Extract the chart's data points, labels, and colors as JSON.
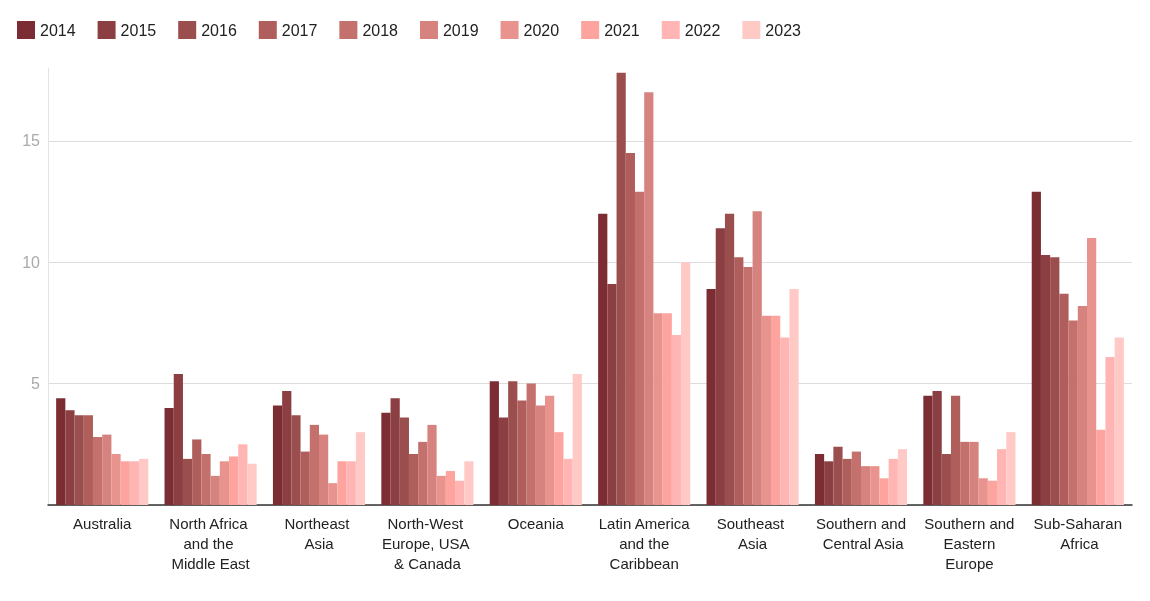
{
  "chart_data": {
    "type": "bar",
    "categories": [
      "Australia",
      "North Africa and the Middle East",
      "Northeast Asia",
      "North-West Europe, USA & Canada",
      "Oceania",
      "Latin America and the Caribbean",
      "Southeast Asia",
      "Southern and Central Asia",
      "Southern and Eastern Europe",
      "Sub-Saharan Africa"
    ],
    "series": [
      {
        "name": "2014",
        "color": "#7b2d33",
        "values": [
          4.4,
          4.0,
          4.1,
          3.8,
          5.1,
          12.0,
          8.9,
          2.1,
          4.5,
          12.9
        ]
      },
      {
        "name": "2015",
        "color": "#8b3f42",
        "values": [
          3.9,
          5.4,
          4.7,
          4.4,
          3.6,
          9.1,
          11.4,
          1.8,
          4.7,
          10.3
        ]
      },
      {
        "name": "2016",
        "color": "#9b4e4e",
        "values": [
          3.7,
          1.9,
          3.7,
          3.6,
          5.1,
          17.8,
          12.0,
          2.4,
          2.1,
          10.2
        ]
      },
      {
        "name": "2017",
        "color": "#b05e5c",
        "values": [
          3.7,
          2.7,
          2.2,
          2.1,
          4.3,
          14.5,
          10.2,
          1.9,
          4.5,
          8.7
        ]
      },
      {
        "name": "2018",
        "color": "#c4706c",
        "values": [
          2.8,
          2.1,
          3.3,
          2.6,
          5.0,
          12.9,
          9.8,
          2.2,
          2.6,
          7.6
        ]
      },
      {
        "name": "2019",
        "color": "#d6827e",
        "values": [
          2.9,
          1.2,
          2.9,
          3.3,
          4.1,
          17.0,
          12.1,
          1.6,
          2.6,
          8.2
        ]
      },
      {
        "name": "2020",
        "color": "#e8938d",
        "values": [
          2.1,
          1.8,
          0.9,
          1.2,
          4.5,
          7.9,
          7.8,
          1.6,
          1.1,
          11.0
        ]
      },
      {
        "name": "2021",
        "color": "#fda49f",
        "values": [
          1.8,
          2.0,
          1.8,
          1.4,
          3.0,
          7.9,
          7.8,
          1.1,
          1.0,
          3.1
        ]
      },
      {
        "name": "2022",
        "color": "#ffb5b3",
        "values": [
          1.8,
          2.5,
          1.8,
          1.0,
          1.9,
          7.0,
          6.9,
          1.9,
          2.3,
          6.1
        ]
      },
      {
        "name": "2023",
        "color": "#ffc9c6",
        "values": [
          1.9,
          1.7,
          3.0,
          1.8,
          5.4,
          10.0,
          8.9,
          2.3,
          3.0,
          6.9
        ]
      }
    ],
    "ylim": [
      0,
      18
    ],
    "yticks": [
      {
        "value": 0,
        "label": null
      },
      5,
      10,
      15
    ],
    "grid": "y",
    "legend": "top left"
  }
}
